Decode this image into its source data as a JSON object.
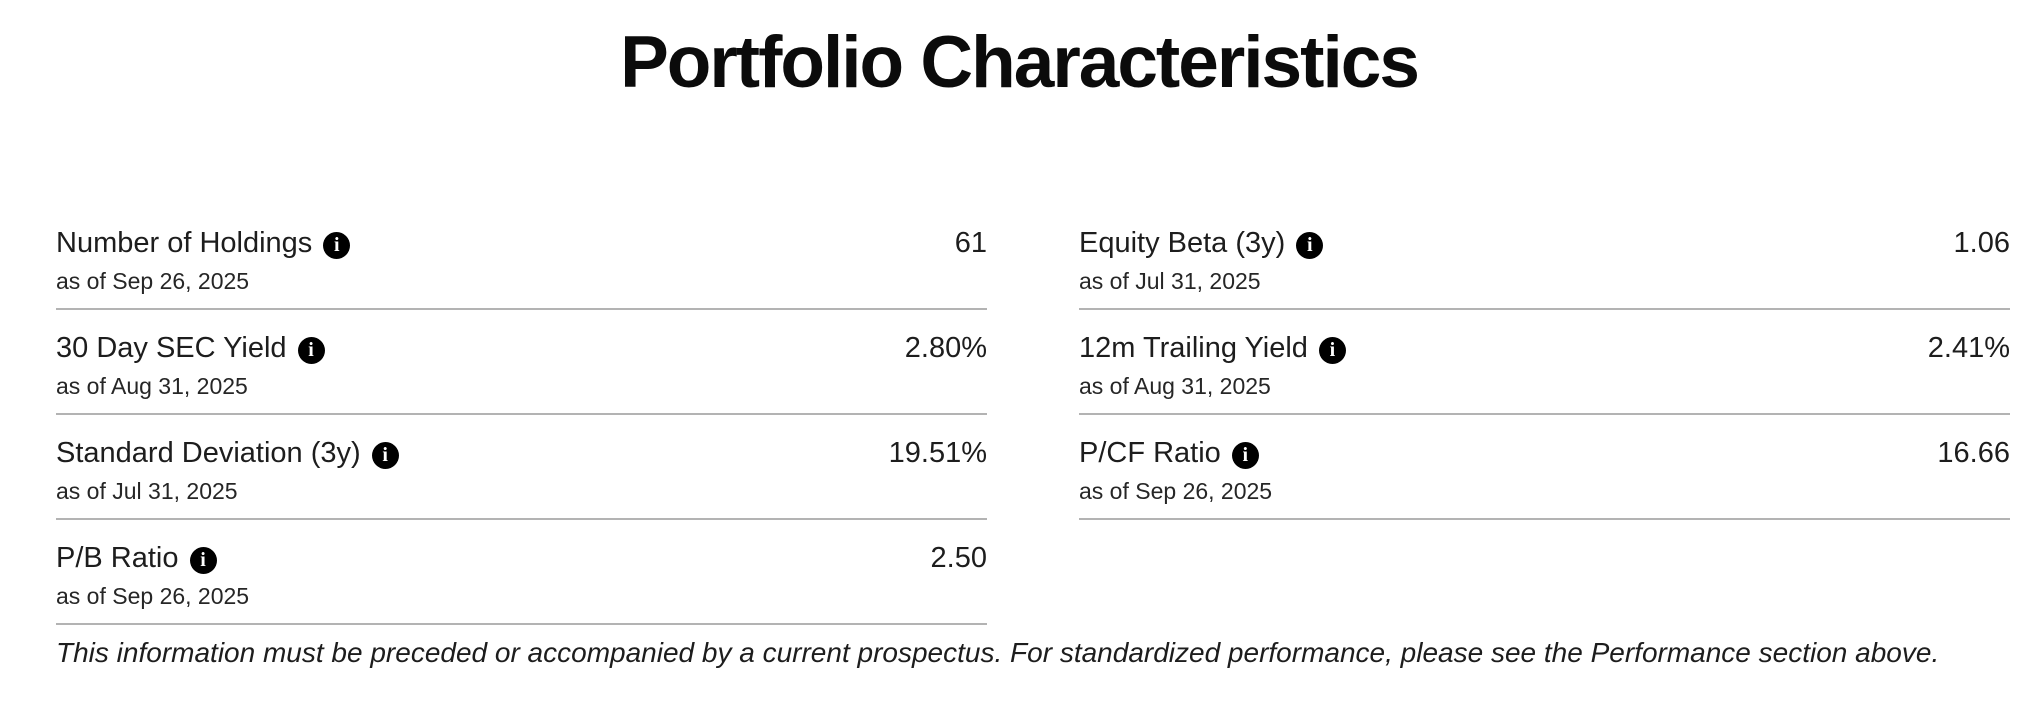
{
  "title": "Portfolio Characteristics",
  "icons": {
    "info_glyph": "i"
  },
  "metrics": {
    "left": [
      {
        "label": "Number of Holdings",
        "value": "61",
        "as_of": "as of Sep 26, 2025"
      },
      {
        "label": "30 Day SEC Yield",
        "value": "2.80%",
        "as_of": "as of Aug 31, 2025"
      },
      {
        "label": "Standard Deviation (3y)",
        "value": "19.51%",
        "as_of": "as of Jul 31, 2025"
      },
      {
        "label": "P/B Ratio",
        "value": "2.50",
        "as_of": "as of Sep 26, 2025"
      }
    ],
    "right": [
      {
        "label": "Equity Beta (3y)",
        "value": "1.06",
        "as_of": "as of Jul 31, 2025"
      },
      {
        "label": "12m Trailing Yield",
        "value": "2.41%",
        "as_of": "as of Aug 31, 2025"
      },
      {
        "label": "P/CF Ratio",
        "value": "16.66",
        "as_of": "as of Sep 26, 2025"
      }
    ]
  },
  "disclaimer": "This information must be preceded or accompanied by a current prospectus. For standardized performance, please see the Performance section above.",
  "colors": {
    "text": "#1d1d1d",
    "divider": "#b3b3b3",
    "info_icon_bg": "#000000",
    "info_icon_fg": "#ffffff",
    "background": "#ffffff"
  }
}
